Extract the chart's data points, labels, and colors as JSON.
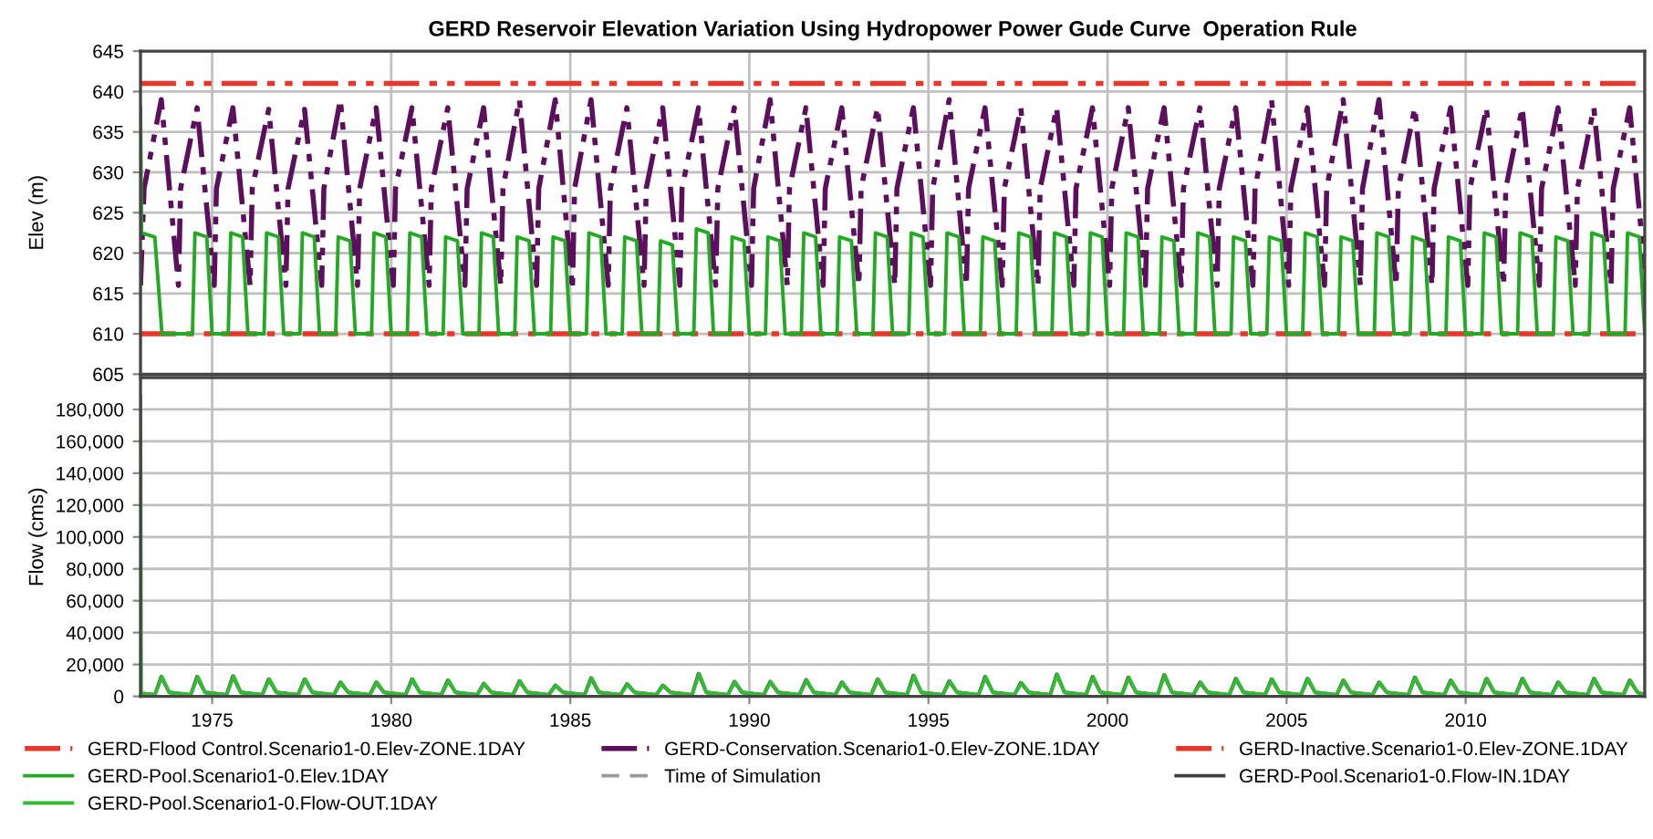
{
  "chart_data": [
    {
      "type": "line",
      "title": "GERD Reservoir Elevation Variation Using Hydropower Power Gude Curve  Operation Rule",
      "ylabel": "Elev (m)",
      "xlim": [
        1973,
        2015
      ],
      "xticks": [
        1975,
        1980,
        1985,
        1990,
        1995,
        2000,
        2005,
        2010
      ],
      "ylim": [
        605,
        645
      ],
      "yticks": [
        605,
        610,
        615,
        620,
        625,
        630,
        635,
        640,
        645
      ],
      "grid": true,
      "tick_labels": "y",
      "legend": "bottom",
      "series": [
        {
          "name": "GERD-Flood Control.Scenario1-0.Elev-ZONE.1DAY",
          "color": "#e8362a",
          "line_style": "dashdot",
          "x": [
            1973,
            2015
          ],
          "values": [
            641,
            641
          ]
        },
        {
          "name": "GERD-Conservation.Scenario1-0.Elev-ZONE.1DAY",
          "color": "#5c0f5c",
          "line_style": "dashdot",
          "x": [
            1973.0,
            1973.1,
            1973.58,
            1974.06,
            1974.12,
            1974.58,
            1975.06,
            1975.12,
            1975.58,
            1976.06,
            1976.12,
            1976.58,
            1977.06,
            1977.12,
            1977.58,
            1978.06,
            1978.12,
            1978.58,
            1979.06,
            1979.12,
            1979.58,
            1980.06,
            1980.12,
            1980.58,
            1981.06,
            1981.12,
            1981.58,
            1982.06,
            1982.12,
            1982.58,
            1983.06,
            1983.12,
            1983.58,
            1984.06,
            1984.12,
            1984.58,
            1985.06,
            1985.12,
            1985.58,
            1986.06,
            1986.12,
            1986.58,
            1987.06,
            1987.12,
            1987.58,
            1988.06,
            1988.12,
            1988.58,
            1989.06,
            1989.12,
            1989.58,
            1990.06,
            1990.12,
            1990.58,
            1991.06,
            1991.12,
            1991.58,
            1992.06,
            1992.12,
            1992.58,
            1993.06,
            1993.12,
            1993.58,
            1994.06,
            1994.12,
            1994.58,
            1995.06,
            1995.12,
            1995.58,
            1996.06,
            1996.12,
            1996.58,
            1997.06,
            1997.12,
            1997.58,
            1998.06,
            1998.12,
            1998.58,
            1999.06,
            1999.12,
            1999.58,
            2000.06,
            2000.12,
            2000.58,
            2001.06,
            2001.12,
            2001.58,
            2002.06,
            2002.12,
            2002.58,
            2003.06,
            2003.12,
            2003.58,
            2004.06,
            2004.12,
            2004.58,
            2005.06,
            2005.12,
            2005.58,
            2006.06,
            2006.12,
            2006.58,
            2007.06,
            2007.12,
            2007.58,
            2008.06,
            2008.12,
            2008.58,
            2009.06,
            2009.12,
            2009.58,
            2010.06,
            2010.12,
            2010.58,
            2011.06,
            2011.12,
            2011.58,
            2012.06,
            2012.12,
            2012.58,
            2013.06,
            2013.12,
            2013.58,
            2014.06,
            2014.12,
            2014.58,
            2015.0
          ],
          "values": [
            616,
            628,
            639,
            616,
            628,
            638,
            616,
            628,
            638,
            616,
            628,
            637.8,
            616,
            628,
            637.8,
            616,
            628,
            639,
            616,
            628,
            638,
            616,
            628,
            638,
            616,
            628,
            638,
            616,
            628,
            638,
            616,
            628,
            639,
            616,
            628,
            639,
            615.5,
            628,
            639,
            616,
            628,
            638,
            616,
            628,
            638,
            616,
            628,
            638,
            616,
            628,
            638,
            616,
            628,
            639,
            616,
            628,
            638,
            616,
            628,
            638,
            616,
            628,
            638,
            616,
            628,
            638,
            616,
            628,
            639,
            616,
            628,
            638,
            616,
            628,
            638,
            616,
            628,
            638,
            616,
            628,
            638,
            616,
            628,
            638,
            616,
            628,
            638,
            616,
            628,
            638,
            616,
            628,
            638,
            616,
            628,
            639,
            616,
            628,
            638,
            616,
            628,
            639,
            616,
            628,
            639,
            616,
            628,
            638,
            616,
            628,
            638,
            616,
            628,
            638,
            616,
            628,
            638,
            616,
            628,
            638,
            616,
            628,
            638,
            616,
            628,
            638,
            618
          ]
        },
        {
          "name": "GERD-Inactive.Scenario1-0.Elev-ZONE.1DAY",
          "color": "#e8362a",
          "line_style": "dashdot",
          "x": [
            1973,
            2015
          ],
          "values": [
            610,
            610
          ]
        },
        {
          "name": "GERD-Pool.Scenario1-0.Elev.1DAY",
          "color": "#22aa22",
          "line_style": "solid",
          "x": [
            1973.0,
            1973.03,
            1973.4,
            1973.6,
            1974.45,
            1974.52,
            1974.85,
            1975.0,
            1975.45,
            1975.52,
            1975.85,
            1976.0,
            1976.45,
            1976.52,
            1976.85,
            1977.0,
            1977.45,
            1977.52,
            1977.85,
            1978.0,
            1978.45,
            1978.52,
            1978.85,
            1979.0,
            1979.45,
            1979.52,
            1979.85,
            1980.0,
            1980.45,
            1980.52,
            1980.85,
            1981.0,
            1981.45,
            1981.52,
            1981.85,
            1982.0,
            1982.45,
            1982.52,
            1982.85,
            1983.0,
            1983.45,
            1983.52,
            1983.85,
            1984.0,
            1984.45,
            1984.52,
            1984.85,
            1985.0,
            1985.45,
            1985.52,
            1985.85,
            1986.0,
            1986.45,
            1986.52,
            1986.85,
            1987.0,
            1987.45,
            1987.52,
            1987.85,
            1988.0,
            1988.45,
            1988.52,
            1988.85,
            1989.0,
            1989.45,
            1989.52,
            1989.85,
            1990.0,
            1990.45,
            1990.52,
            1990.85,
            1991.0,
            1991.45,
            1991.52,
            1991.85,
            1992.0,
            1992.45,
            1992.52,
            1992.85,
            1993.0,
            1993.45,
            1993.52,
            1993.85,
            1994.0,
            1994.45,
            1994.52,
            1994.85,
            1995.0,
            1995.45,
            1995.52,
            1995.85,
            1996.0,
            1996.45,
            1996.52,
            1996.85,
            1997.0,
            1997.45,
            1997.52,
            1997.85,
            1998.0,
            1998.45,
            1998.52,
            1998.85,
            1999.0,
            1999.45,
            1999.52,
            1999.85,
            2000.0,
            2000.45,
            2000.52,
            2000.85,
            2001.0,
            2001.45,
            2001.52,
            2001.85,
            2002.0,
            2002.45,
            2002.52,
            2002.85,
            2003.0,
            2003.45,
            2003.52,
            2003.85,
            2004.0,
            2004.45,
            2004.52,
            2004.85,
            2005.0,
            2005.45,
            2005.52,
            2005.85,
            2006.0,
            2006.45,
            2006.52,
            2006.85,
            2007.0,
            2007.45,
            2007.52,
            2007.85,
            2008.0,
            2008.45,
            2008.52,
            2008.85,
            2009.0,
            2009.45,
            2009.52,
            2009.85,
            2010.0,
            2010.45,
            2010.52,
            2010.85,
            2011.0,
            2011.45,
            2011.52,
            2011.85,
            2012.0,
            2012.45,
            2012.52,
            2012.85,
            2013.0,
            2013.45,
            2013.52,
            2013.85,
            2014.0,
            2014.45,
            2014.52,
            2014.85,
            2015.0
          ],
          "values": [
            638,
            622.5,
            622,
            610,
            610,
            622.5,
            622,
            610,
            610,
            622.5,
            622,
            610,
            610,
            622.5,
            622,
            610,
            610,
            622.5,
            622,
            610,
            610,
            622,
            621.5,
            610,
            610,
            622.5,
            622,
            610,
            610,
            622.5,
            622,
            610,
            610,
            622,
            621.5,
            610,
            610,
            622.5,
            622,
            610,
            610,
            622,
            621.5,
            610,
            610,
            622,
            621.5,
            610,
            610,
            622.5,
            622,
            610,
            610,
            622,
            621.5,
            610,
            610,
            621.5,
            621,
            610,
            610,
            623,
            622.5,
            610,
            610,
            622,
            621.5,
            610,
            610,
            622,
            621.5,
            610,
            610,
            622.5,
            622,
            610,
            610,
            622,
            621.5,
            610,
            610,
            622.5,
            622,
            610,
            610,
            622.5,
            622,
            610,
            610,
            622.5,
            622,
            610,
            610,
            622,
            621.5,
            610,
            610,
            622.5,
            622,
            610,
            610,
            622.5,
            622,
            610,
            610,
            622.5,
            622,
            610,
            610,
            622.5,
            622,
            610,
            610,
            622,
            621.5,
            610,
            610,
            622.5,
            622,
            610,
            610,
            622,
            621.5,
            610,
            610,
            622,
            621.5,
            610,
            610,
            622.5,
            622,
            610,
            610,
            622,
            621.5,
            610,
            610,
            622.5,
            622,
            610,
            610,
            622,
            621.5,
            610,
            610,
            622,
            621.5,
            610,
            610,
            622.5,
            622,
            610,
            610,
            622.5,
            622,
            610,
            610,
            622,
            621.5,
            610,
            610,
            622.5,
            622,
            610,
            610,
            622.5,
            622,
            610
          ]
        }
      ]
    },
    {
      "type": "line",
      "ylabel": "Flow (cms)",
      "xlim": [
        1973,
        2015
      ],
      "xticks": [
        1975,
        1980,
        1985,
        1990,
        1995,
        2000,
        2005,
        2010
      ],
      "ylim": [
        0,
        200000
      ],
      "yticks": [
        0,
        {
          "value": 20000,
          "label": "20,000"
        },
        {
          "value": 40000,
          "label": "40,000"
        },
        {
          "value": 60000,
          "label": "60,000"
        },
        {
          "value": 80000,
          "label": "80,000"
        },
        {
          "value": 100000,
          "label": "100,000"
        },
        {
          "value": 120000,
          "label": "120,000"
        },
        {
          "value": 140000,
          "label": "140,000"
        },
        {
          "value": 160000,
          "label": "160,000"
        },
        {
          "value": 180000,
          "label": "180,000"
        }
      ],
      "grid": true,
      "legend": "bottom",
      "series": [
        {
          "name": "Time of Simulation",
          "color": "#999999",
          "line_style": "dashed"
        },
        {
          "name": "GERD-Pool.Scenario1-0.Flow-IN.1DAY",
          "color": "#404040",
          "line_style": "solid",
          "x": [
            1973.0,
            1973.4,
            1973.58,
            1973.8,
            1974.4,
            1974.58,
            1974.8,
            1975.4,
            1975.58,
            1975.8,
            1976.4,
            1976.58,
            1976.8,
            1977.4,
            1977.58,
            1977.8,
            1978.4,
            1978.58,
            1978.8,
            1979.4,
            1979.58,
            1979.8,
            1980.4,
            1980.58,
            1980.8,
            1981.4,
            1981.58,
            1981.8,
            1982.4,
            1982.58,
            1982.8,
            1983.4,
            1983.58,
            1983.8,
            1984.4,
            1984.58,
            1984.8,
            1985.4,
            1985.58,
            1985.8,
            1986.4,
            1986.58,
            1986.8,
            1987.4,
            1987.58,
            1987.8,
            1988.4,
            1988.58,
            1988.8,
            1989.4,
            1989.58,
            1989.8,
            1990.4,
            1990.58,
            1990.8,
            1991.4,
            1991.58,
            1991.8,
            1992.4,
            1992.58,
            1992.8,
            1993.4,
            1993.58,
            1993.8,
            1994.4,
            1994.58,
            1994.8,
            1995.4,
            1995.58,
            1995.8,
            1996.4,
            1996.58,
            1996.8,
            1997.4,
            1997.58,
            1997.8,
            1998.4,
            1998.58,
            1998.8,
            1999.4,
            1999.58,
            1999.8,
            2000.4,
            2000.58,
            2000.8,
            2001.4,
            2001.58,
            2001.8,
            2002.4,
            2002.58,
            2002.8,
            2003.4,
            2003.58,
            2003.8,
            2004.4,
            2004.58,
            2004.8,
            2005.4,
            2005.58,
            2005.8,
            2006.4,
            2006.58,
            2006.8,
            2007.4,
            2007.58,
            2007.8,
            2008.4,
            2008.58,
            2008.8,
            2009.4,
            2009.58,
            2009.8,
            2010.4,
            2010.58,
            2010.8,
            2011.4,
            2011.58,
            2011.8,
            2012.4,
            2012.58,
            2012.8,
            2013.4,
            2013.58,
            2013.8,
            2014.4,
            2014.58,
            2014.8,
            2015.0
          ],
          "values": [
            2000,
            1000,
            12300,
            2500,
            1000,
            12300,
            2500,
            1000,
            12700,
            2500,
            1000,
            10800,
            2500,
            1000,
            10800,
            2500,
            1000,
            8800,
            2500,
            1000,
            8800,
            2500,
            1000,
            10800,
            2500,
            1000,
            10000,
            2500,
            1000,
            8000,
            2500,
            1000,
            9600,
            2500,
            1000,
            6900,
            2500,
            1000,
            11500,
            2500,
            1000,
            7700,
            2500,
            1000,
            6900,
            2500,
            1000,
            14200,
            2500,
            1000,
            9200,
            2500,
            1000,
            9200,
            2500,
            1000,
            10400,
            2500,
            1000,
            8800,
            2500,
            1000,
            10800,
            2500,
            1000,
            13100,
            2500,
            1000,
            9600,
            2500,
            1000,
            12300,
            2500,
            1000,
            8500,
            2500,
            1000,
            13800,
            2500,
            1000,
            12300,
            2500,
            1000,
            11900,
            2500,
            1000,
            13500,
            2500,
            1000,
            8800,
            2500,
            1000,
            11100,
            2500,
            1000,
            10800,
            2500,
            1000,
            11100,
            2500,
            1000,
            10000,
            2500,
            1000,
            8800,
            2500,
            1000,
            11900,
            2500,
            1000,
            10000,
            2500,
            1000,
            11100,
            2500,
            1000,
            11100,
            2500,
            1000,
            8800,
            2500,
            1000,
            11100,
            2500,
            1000,
            10000,
            2500,
            1000
          ]
        },
        {
          "name": "GERD-Pool.Scenario1-0.Flow-OUT.1DAY",
          "color": "#33bb33",
          "line_style": "solid",
          "x": [
            1973.0,
            1973.02,
            1973.4,
            1973.6,
            1973.8,
            1974.4,
            1974.6,
            1974.8,
            1975.4,
            1975.6,
            1975.8,
            1976.4,
            1976.6,
            1976.8,
            1977.4,
            1977.6,
            1977.8,
            1978.4,
            1978.6,
            1978.8,
            1979.4,
            1979.6,
            1979.8,
            1980.4,
            1980.6,
            1980.8,
            1981.4,
            1981.6,
            1981.8,
            1982.4,
            1982.6,
            1982.8,
            1983.4,
            1983.6,
            1983.8,
            1984.4,
            1984.6,
            1984.8,
            1985.4,
            1985.6,
            1985.8,
            1986.4,
            1986.6,
            1986.8,
            1987.4,
            1987.6,
            1987.8,
            1988.4,
            1988.6,
            1988.8,
            1989.4,
            1989.6,
            1989.8,
            1990.4,
            1990.6,
            1990.8,
            1991.4,
            1991.6,
            1991.8,
            1992.4,
            1992.6,
            1992.8,
            1993.4,
            1993.6,
            1993.8,
            1994.4,
            1994.6,
            1994.8,
            1995.4,
            1995.6,
            1995.8,
            1996.4,
            1996.6,
            1996.8,
            1997.4,
            1997.6,
            1997.8,
            1998.4,
            1998.6,
            1998.8,
            1999.4,
            1999.6,
            1999.8,
            2000.4,
            2000.6,
            2000.8,
            2001.4,
            2001.6,
            2001.8,
            2002.4,
            2002.6,
            2002.8,
            2003.4,
            2003.6,
            2003.8,
            2004.4,
            2004.6,
            2004.8,
            2005.4,
            2005.6,
            2005.8,
            2006.4,
            2006.6,
            2006.8,
            2007.4,
            2007.6,
            2007.8,
            2008.4,
            2008.6,
            2008.8,
            2009.4,
            2009.6,
            2009.8,
            2010.4,
            2010.6,
            2010.8,
            2011.4,
            2011.6,
            2011.8,
            2012.4,
            2012.6,
            2012.8,
            2013.4,
            2013.6,
            2013.8,
            2014.4,
            2014.6,
            2014.8,
            2015.0
          ],
          "values": [
            188000,
            2000,
            1000,
            12300,
            2500,
            1000,
            12300,
            2500,
            1000,
            12700,
            2500,
            1000,
            10800,
            2500,
            1000,
            10800,
            2500,
            1000,
            8800,
            2500,
            1000,
            8800,
            2500,
            1000,
            10800,
            2500,
            1000,
            10000,
            2500,
            1000,
            8000,
            2500,
            1000,
            9600,
            2500,
            1000,
            6900,
            2500,
            1000,
            11500,
            2500,
            1000,
            7700,
            2500,
            1000,
            6900,
            2500,
            1000,
            14200,
            2500,
            1000,
            9200,
            2500,
            1000,
            9200,
            2500,
            1000,
            10400,
            2500,
            1000,
            8800,
            2500,
            1000,
            10800,
            2500,
            1000,
            13100,
            2500,
            1000,
            9600,
            2500,
            1000,
            12300,
            2500,
            1000,
            8500,
            2500,
            1000,
            13800,
            2500,
            1000,
            12300,
            2500,
            1000,
            11900,
            2500,
            1000,
            13500,
            2500,
            1000,
            8800,
            2500,
            1000,
            11100,
            2500,
            1000,
            10800,
            2500,
            1000,
            11100,
            2500,
            1000,
            10000,
            2500,
            1000,
            8800,
            2500,
            1000,
            11900,
            2500,
            1000,
            10000,
            2500,
            1000,
            11100,
            2500,
            1000,
            11100,
            2500,
            1000,
            8800,
            2500,
            1000,
            11100,
            2500,
            1000,
            10000,
            2500,
            1000
          ]
        }
      ]
    }
  ]
}
